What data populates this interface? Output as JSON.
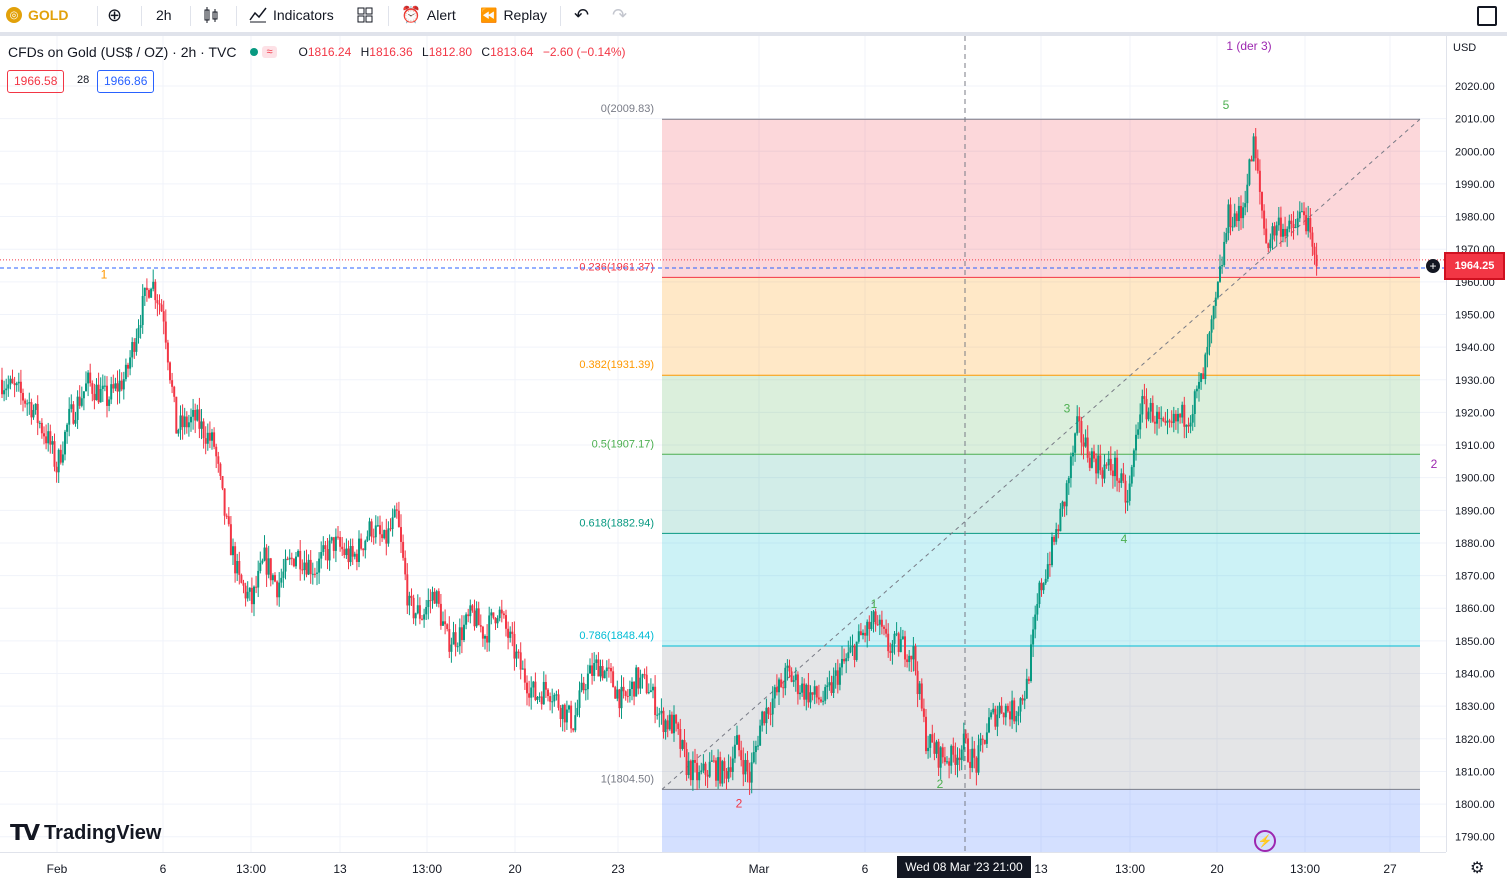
{
  "toolbar": {
    "symbol": "GOLD",
    "interval": "2h",
    "indicators": "Indicators",
    "alert": "Alert",
    "replay": "Replay"
  },
  "legend": {
    "title": "CFDs on Gold (US$ / OZ) · 2h · TVC",
    "o_label": "O",
    "o": "1816.24",
    "h_label": "H",
    "h": "1816.36",
    "l_label": "L",
    "l": "1812.80",
    "c_label": "C",
    "c": "1813.64",
    "change": "−2.60 (−0.14%)",
    "bid": "1966.58",
    "spread": "28",
    "ask": "1966.86"
  },
  "axis": {
    "currency": "USD",
    "last_price": "1964.25",
    "crosshair_time": "Wed 08 Mar '23   21:00"
  },
  "branding": {
    "logo_text": "TradingView"
  },
  "colors": {
    "up": "#089981",
    "down": "#f23645",
    "accent": "#2962ff"
  },
  "chart_data": {
    "type": "candlestick",
    "title": "CFDs on Gold (US$ / OZ) · 2h · TVC",
    "y_range": [
      1784,
      2027
    ],
    "y_ticks": [
      2020,
      2010,
      2000,
      1990,
      1980,
      1970,
      1960,
      1950,
      1940,
      1930,
      1920,
      1910,
      1900,
      1890,
      1880,
      1870,
      1860,
      1850,
      1840,
      1830,
      1820,
      1810,
      1800,
      1790
    ],
    "x_ticks": [
      "Feb",
      "6",
      "13:00",
      "13",
      "13:00",
      "20",
      "23",
      "Mar",
      "6",
      "13",
      "13:00",
      "20",
      "13:00",
      "27"
    ],
    "close_path": [
      [
        0,
        1930
      ],
      [
        3,
        1926
      ],
      [
        5,
        1922
      ],
      [
        8,
        1910
      ],
      [
        9,
        1903
      ],
      [
        11,
        1918
      ],
      [
        14,
        1929
      ],
      [
        17,
        1924
      ],
      [
        20,
        1931
      ],
      [
        22,
        1948
      ],
      [
        24,
        1961
      ],
      [
        26,
        1950
      ],
      [
        28,
        1915
      ],
      [
        31,
        1918
      ],
      [
        34,
        1910
      ],
      [
        36,
        1885
      ],
      [
        38,
        1868
      ],
      [
        40,
        1862
      ],
      [
        42,
        1875
      ],
      [
        44,
        1867
      ],
      [
        47,
        1877
      ],
      [
        50,
        1872
      ],
      [
        53,
        1880
      ],
      [
        56,
        1875
      ],
      [
        59,
        1885
      ],
      [
        61,
        1880
      ],
      [
        63,
        1888
      ],
      [
        65,
        1860
      ],
      [
        67,
        1858
      ],
      [
        69,
        1865
      ],
      [
        71,
        1850
      ],
      [
        73,
        1852
      ],
      [
        75,
        1858
      ],
      [
        77,
        1852
      ],
      [
        79,
        1860
      ],
      [
        81,
        1850
      ],
      [
        83,
        1840
      ],
      [
        85,
        1833
      ],
      [
        87,
        1836
      ],
      [
        89,
        1830
      ],
      [
        91,
        1825
      ],
      [
        93,
        1838
      ],
      [
        95,
        1843
      ],
      [
        97,
        1838
      ],
      [
        99,
        1831
      ],
      [
        101,
        1838
      ],
      [
        103,
        1836
      ],
      [
        105,
        1826
      ],
      [
        107,
        1824
      ],
      [
        109,
        1812
      ],
      [
        111,
        1808
      ],
      [
        113,
        1812
      ],
      [
        115,
        1809
      ],
      [
        117,
        1818
      ],
      [
        119,
        1808
      ],
      [
        121,
        1827
      ],
      [
        123,
        1833
      ],
      [
        125,
        1840
      ],
      [
        127,
        1836
      ],
      [
        129,
        1833
      ],
      [
        131,
        1832
      ],
      [
        133,
        1840
      ],
      [
        135,
        1846
      ],
      [
        137,
        1852
      ],
      [
        139,
        1856
      ],
      [
        141,
        1848
      ],
      [
        143,
        1849
      ],
      [
        145,
        1846
      ],
      [
        147,
        1820
      ],
      [
        149,
        1815
      ],
      [
        151,
        1814
      ],
      [
        153,
        1818
      ],
      [
        155,
        1812
      ],
      [
        157,
        1825
      ],
      [
        159,
        1830
      ],
      [
        161,
        1828
      ],
      [
        163,
        1836
      ],
      [
        165,
        1865
      ],
      [
        167,
        1878
      ],
      [
        169,
        1893
      ],
      [
        171,
        1915
      ],
      [
        173,
        1907
      ],
      [
        175,
        1903
      ],
      [
        177,
        1903
      ],
      [
        179,
        1892
      ],
      [
        181,
        1922
      ],
      [
        183,
        1920
      ],
      [
        185,
        1913
      ],
      [
        187,
        1918
      ],
      [
        189,
        1920
      ],
      [
        191,
        1931
      ],
      [
        193,
        1953
      ],
      [
        195,
        1980
      ],
      [
        197,
        1980
      ],
      [
        199,
        2002
      ],
      [
        201,
        1972
      ],
      [
        203,
        1978
      ],
      [
        205,
        1975
      ],
      [
        207,
        1982
      ],
      [
        209,
        1963
      ]
    ],
    "fib_levels": [
      {
        "label": "0(2009.83)",
        "ratio": 0,
        "price": 2009.83
      },
      {
        "label": "0.236(1961.37)",
        "ratio": 0.236,
        "price": 1961.37
      },
      {
        "label": "0.382(1931.39)",
        "ratio": 0.382,
        "price": 1931.39
      },
      {
        "label": "0.5(1907.17)",
        "ratio": 0.5,
        "price": 1907.17
      },
      {
        "label": "0.618(1882.94)",
        "ratio": 0.618,
        "price": 1882.94
      },
      {
        "label": "0.786(1848.44)",
        "ratio": 0.786,
        "price": 1848.44
      },
      {
        "label": "1(1804.50)",
        "ratio": 1,
        "price": 1804.5
      }
    ],
    "wave_labels": [
      {
        "text": "1",
        "price": 1961
      },
      {
        "text": "2",
        "price": 1799
      },
      {
        "text": "1",
        "price": 1860
      },
      {
        "text": "2",
        "price": 1805
      },
      {
        "text": "3",
        "price": 1920
      },
      {
        "text": "4",
        "price": 1880
      },
      {
        "text": "5",
        "price": 2013
      },
      {
        "text": "1 (der 3)",
        "price": 2031
      },
      {
        "text": "2",
        "price": 1903
      }
    ]
  }
}
